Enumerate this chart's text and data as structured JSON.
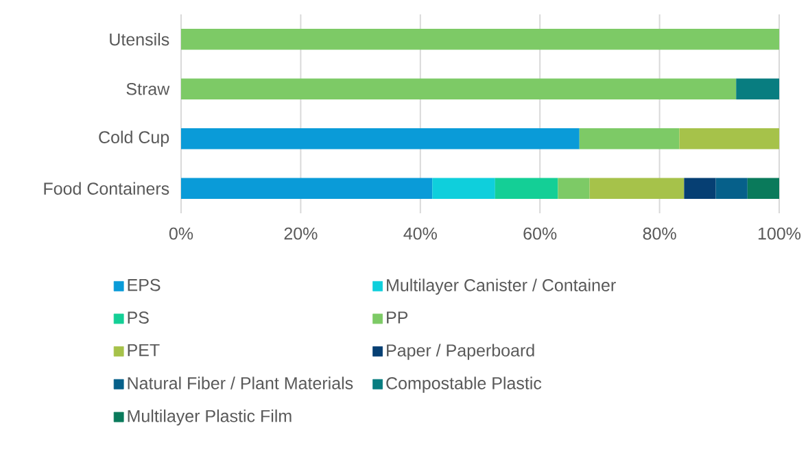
{
  "chart_data": {
    "type": "bar",
    "orientation": "horizontal",
    "stacked": true,
    "categories": [
      "Utensils",
      "Straw",
      "Cold Cup",
      "Food Containers"
    ],
    "series": [
      {
        "name": "EPS",
        "color": "#0a9bd8",
        "values": [
          null,
          null,
          66.6,
          42.0
        ]
      },
      {
        "name": "Multilayer Canister / Container",
        "color": "#0fcfdc",
        "values": [
          null,
          null,
          null,
          10.5
        ]
      },
      {
        "name": "PS",
        "color": "#14cf96",
        "values": [
          null,
          null,
          null,
          10.5
        ]
      },
      {
        "name": "PP",
        "color": "#7dca66",
        "values": [
          100,
          92.8,
          16.7,
          5.3
        ]
      },
      {
        "name": "PET",
        "color": "#a6c24a",
        "values": [
          null,
          null,
          16.7,
          15.8
        ]
      },
      {
        "name": "Paper / Paperboard",
        "color": "#063f73",
        "values": [
          null,
          null,
          null,
          5.3
        ]
      },
      {
        "name": "Natural Fiber / Plant Materials",
        "color": "#06608a",
        "values": [
          null,
          null,
          null,
          5.3
        ]
      },
      {
        "name": "Compostable Plastic",
        "color": "#087d80",
        "values": [
          null,
          7.2,
          null,
          null
        ]
      },
      {
        "name": "Multilayer Plastic Film",
        "color": "#0a7a5b",
        "values": [
          null,
          null,
          null,
          5.3
        ]
      }
    ],
    "xlim": [
      0,
      100
    ],
    "xticks": [
      {
        "value": 0,
        "label": "0%"
      },
      {
        "value": 20,
        "label": "20%"
      },
      {
        "value": 40,
        "label": "40%"
      },
      {
        "value": 60,
        "label": "60%"
      },
      {
        "value": 80,
        "label": "80%"
      },
      {
        "value": 100,
        "label": "100%"
      }
    ],
    "grid": "x",
    "legend": "bottom"
  }
}
